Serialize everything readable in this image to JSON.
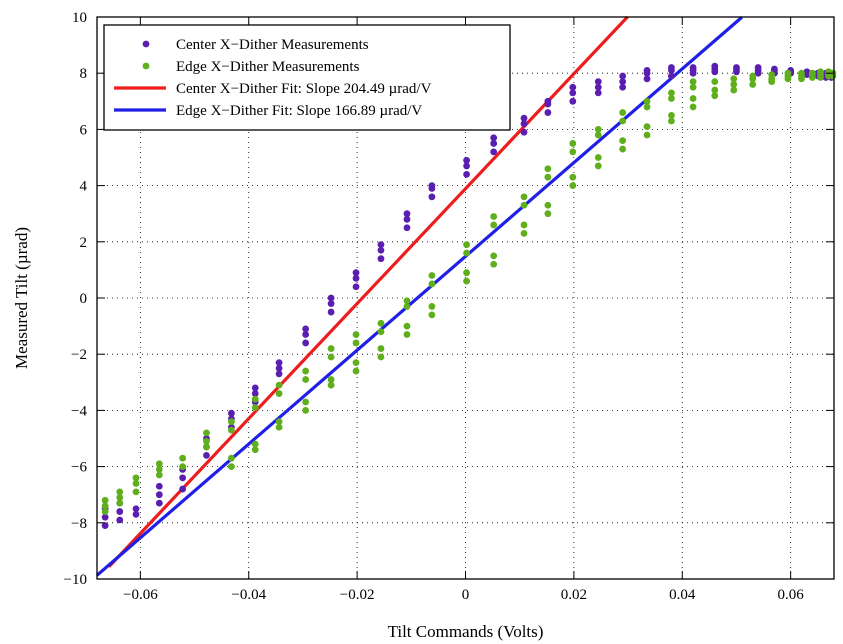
{
  "chart_data": {
    "type": "scatter",
    "xlabel": "Tilt Commands (Volts)",
    "ylabel": "Measured Tilt (µrad)",
    "xlim": [
      -0.068,
      0.068
    ],
    "ylim": [
      -10,
      10
    ],
    "grid": true,
    "legend_position": "top-left",
    "xticks": [
      -0.06,
      -0.04,
      -0.02,
      0,
      0.02,
      0.04,
      0.06
    ],
    "xtick_labels": [
      "−0.06",
      "−0.04",
      "−0.02",
      "0",
      "0.02",
      "0.04",
      "0.06"
    ],
    "yticks": [
      -10,
      -8,
      -6,
      -4,
      -2,
      0,
      2,
      4,
      6,
      8,
      10
    ],
    "ytick_labels": [
      "−10",
      "−8",
      "−6",
      "−4",
      "−2",
      "0",
      "2",
      "4",
      "6",
      "8",
      "10"
    ],
    "series": [
      {
        "name": "Center X−Dither Measurements",
        "kind": "scatter",
        "color": "#5a1fb0",
        "points": [
          [
            -0.0665,
            -8.1
          ],
          [
            -0.0665,
            -7.8
          ],
          [
            -0.0665,
            -7.5
          ],
          [
            -0.0638,
            -7.9
          ],
          [
            -0.0638,
            -7.6
          ],
          [
            -0.0638,
            -7.3
          ],
          [
            -0.0608,
            -7.7
          ],
          [
            -0.0608,
            -7.5
          ],
          [
            -0.0565,
            -7.3
          ],
          [
            -0.0565,
            -7.0
          ],
          [
            -0.0565,
            -6.7
          ],
          [
            -0.0522,
            -6.8
          ],
          [
            -0.0522,
            -6.4
          ],
          [
            -0.0522,
            -6.1
          ],
          [
            -0.0478,
            -5.6
          ],
          [
            -0.0478,
            -5.3
          ],
          [
            -0.0478,
            -5.0
          ],
          [
            -0.0432,
            -4.6
          ],
          [
            -0.0432,
            -4.3
          ],
          [
            -0.0432,
            -4.1
          ],
          [
            -0.0388,
            -3.7
          ],
          [
            -0.0388,
            -3.4
          ],
          [
            -0.0388,
            -3.2
          ],
          [
            -0.0344,
            -2.7
          ],
          [
            -0.0344,
            -2.5
          ],
          [
            -0.0344,
            -2.3
          ],
          [
            -0.0295,
            -1.6
          ],
          [
            -0.0295,
            -1.3
          ],
          [
            -0.0295,
            -1.1
          ],
          [
            -0.0248,
            -0.5
          ],
          [
            -0.0248,
            -0.2
          ],
          [
            -0.0248,
            0.0
          ],
          [
            -0.0202,
            0.4
          ],
          [
            -0.0202,
            0.7
          ],
          [
            -0.0202,
            0.9
          ],
          [
            -0.0156,
            1.4
          ],
          [
            -0.0156,
            1.7
          ],
          [
            -0.0156,
            1.9
          ],
          [
            -0.0108,
            2.5
          ],
          [
            -0.0108,
            2.8
          ],
          [
            -0.0108,
            3.0
          ],
          [
            -0.0062,
            3.6
          ],
          [
            -0.0062,
            3.9
          ],
          [
            -0.0062,
            4.0
          ],
          [
            0.0002,
            4.4
          ],
          [
            0.0002,
            4.7
          ],
          [
            0.0002,
            4.9
          ],
          [
            0.0052,
            5.2
          ],
          [
            0.0052,
            5.5
          ],
          [
            0.0052,
            5.7
          ],
          [
            0.0108,
            5.9
          ],
          [
            0.0108,
            6.2
          ],
          [
            0.0108,
            6.4
          ],
          [
            0.0152,
            6.6
          ],
          [
            0.0152,
            6.9
          ],
          [
            0.0152,
            7.0
          ],
          [
            0.0198,
            7.0
          ],
          [
            0.0198,
            7.3
          ],
          [
            0.0198,
            7.5
          ],
          [
            0.0245,
            7.3
          ],
          [
            0.0245,
            7.5
          ],
          [
            0.0245,
            7.7
          ],
          [
            0.029,
            7.5
          ],
          [
            0.029,
            7.7
          ],
          [
            0.029,
            7.9
          ],
          [
            0.0335,
            7.8
          ],
          [
            0.0335,
            8.0
          ],
          [
            0.0335,
            8.1
          ],
          [
            0.038,
            7.9
          ],
          [
            0.038,
            8.1
          ],
          [
            0.038,
            8.2
          ],
          [
            0.042,
            8.0
          ],
          [
            0.042,
            8.1
          ],
          [
            0.042,
            8.2
          ],
          [
            0.046,
            8.05
          ],
          [
            0.046,
            8.15
          ],
          [
            0.046,
            8.25
          ],
          [
            0.05,
            8.05
          ],
          [
            0.05,
            8.15
          ],
          [
            0.05,
            8.2
          ],
          [
            0.054,
            8.0
          ],
          [
            0.054,
            8.1
          ],
          [
            0.054,
            8.2
          ],
          [
            0.057,
            8.0
          ],
          [
            0.057,
            8.1
          ],
          [
            0.057,
            8.15
          ],
          [
            0.06,
            8.0
          ],
          [
            0.06,
            8.05
          ],
          [
            0.06,
            8.1
          ],
          [
            0.063,
            7.95
          ],
          [
            0.063,
            8.0
          ],
          [
            0.063,
            8.05
          ],
          [
            0.065,
            7.9
          ],
          [
            0.065,
            7.95
          ],
          [
            0.065,
            8.0
          ],
          [
            0.0665,
            7.85
          ],
          [
            0.0665,
            7.95
          ],
          [
            0.0665,
            8.0
          ],
          [
            0.0675,
            7.85
          ],
          [
            0.0675,
            7.95
          ],
          [
            0.0675,
            8.0
          ]
        ]
      },
      {
        "name": "Edge X−Dither Measurements",
        "kind": "scatter",
        "color": "#5fae1c",
        "points": [
          [
            -0.0665,
            -7.6
          ],
          [
            -0.0665,
            -7.4
          ],
          [
            -0.0665,
            -7.2
          ],
          [
            -0.0638,
            -7.3
          ],
          [
            -0.0638,
            -7.1
          ],
          [
            -0.0638,
            -6.9
          ],
          [
            -0.0608,
            -6.9
          ],
          [
            -0.0608,
            -6.6
          ],
          [
            -0.0608,
            -6.4
          ],
          [
            -0.0565,
            -6.3
          ],
          [
            -0.0565,
            -6.1
          ],
          [
            -0.0565,
            -5.9
          ],
          [
            -0.0522,
            -6.0
          ],
          [
            -0.0522,
            -5.7
          ],
          [
            -0.0478,
            -5.3
          ],
          [
            -0.0478,
            -5.1
          ],
          [
            -0.0478,
            -4.8
          ],
          [
            -0.0432,
            -6.0
          ],
          [
            -0.0432,
            -5.7
          ],
          [
            -0.0432,
            -4.7
          ],
          [
            -0.0432,
            -4.4
          ],
          [
            -0.0388,
            -5.4
          ],
          [
            -0.0388,
            -5.2
          ],
          [
            -0.0388,
            -3.9
          ],
          [
            -0.0388,
            -3.6
          ],
          [
            -0.0344,
            -4.6
          ],
          [
            -0.0344,
            -4.4
          ],
          [
            -0.0344,
            -3.4
          ],
          [
            -0.0344,
            -3.1
          ],
          [
            -0.0295,
            -4.0
          ],
          [
            -0.0295,
            -3.7
          ],
          [
            -0.0295,
            -2.9
          ],
          [
            -0.0295,
            -2.6
          ],
          [
            -0.0248,
            -3.1
          ],
          [
            -0.0248,
            -2.9
          ],
          [
            -0.0248,
            -2.1
          ],
          [
            -0.0248,
            -1.8
          ],
          [
            -0.0202,
            -2.6
          ],
          [
            -0.0202,
            -2.3
          ],
          [
            -0.0202,
            -1.6
          ],
          [
            -0.0202,
            -1.3
          ],
          [
            -0.0156,
            -2.1
          ],
          [
            -0.0156,
            -1.8
          ],
          [
            -0.0156,
            -1.2
          ],
          [
            -0.0156,
            -0.9
          ],
          [
            -0.0108,
            -1.3
          ],
          [
            -0.0108,
            -1.0
          ],
          [
            -0.0108,
            -0.3
          ],
          [
            -0.0108,
            -0.1
          ],
          [
            -0.0062,
            -0.6
          ],
          [
            -0.0062,
            -0.3
          ],
          [
            -0.0062,
            0.5
          ],
          [
            -0.0062,
            0.8
          ],
          [
            0.0002,
            0.6
          ],
          [
            0.0002,
            0.9
          ],
          [
            0.0002,
            1.6
          ],
          [
            0.0002,
            1.9
          ],
          [
            0.0052,
            1.2
          ],
          [
            0.0052,
            1.5
          ],
          [
            0.0052,
            2.6
          ],
          [
            0.0052,
            2.9
          ],
          [
            0.0108,
            2.3
          ],
          [
            0.0108,
            2.6
          ],
          [
            0.0108,
            3.3
          ],
          [
            0.0108,
            3.6
          ],
          [
            0.0152,
            3.0
          ],
          [
            0.0152,
            3.3
          ],
          [
            0.0152,
            4.3
          ],
          [
            0.0152,
            4.6
          ],
          [
            0.0198,
            4.0
          ],
          [
            0.0198,
            4.3
          ],
          [
            0.0198,
            5.2
          ],
          [
            0.0198,
            5.5
          ],
          [
            0.0245,
            4.7
          ],
          [
            0.0245,
            5.0
          ],
          [
            0.0245,
            5.8
          ],
          [
            0.0245,
            6.0
          ],
          [
            0.029,
            5.3
          ],
          [
            0.029,
            5.6
          ],
          [
            0.029,
            6.3
          ],
          [
            0.029,
            6.6
          ],
          [
            0.0335,
            5.8
          ],
          [
            0.0335,
            6.1
          ],
          [
            0.0335,
            6.8
          ],
          [
            0.0335,
            7.0
          ],
          [
            0.038,
            6.3
          ],
          [
            0.038,
            6.5
          ],
          [
            0.038,
            7.1
          ],
          [
            0.038,
            7.3
          ],
          [
            0.042,
            6.8
          ],
          [
            0.042,
            7.1
          ],
          [
            0.042,
            7.5
          ],
          [
            0.042,
            7.7
          ],
          [
            0.046,
            7.2
          ],
          [
            0.046,
            7.4
          ],
          [
            0.046,
            7.7
          ],
          [
            0.0495,
            7.4
          ],
          [
            0.0495,
            7.6
          ],
          [
            0.0495,
            7.8
          ],
          [
            0.053,
            7.6
          ],
          [
            0.053,
            7.8
          ],
          [
            0.053,
            7.9
          ],
          [
            0.0565,
            7.7
          ],
          [
            0.0565,
            7.8
          ],
          [
            0.0565,
            7.95
          ],
          [
            0.0595,
            7.8
          ],
          [
            0.0595,
            7.9
          ],
          [
            0.0595,
            8.0
          ],
          [
            0.062,
            7.8
          ],
          [
            0.062,
            7.9
          ],
          [
            0.062,
            8.0
          ],
          [
            0.064,
            7.85
          ],
          [
            0.064,
            7.95
          ],
          [
            0.064,
            8.0
          ],
          [
            0.0655,
            7.85
          ],
          [
            0.0655,
            7.95
          ],
          [
            0.0655,
            8.05
          ],
          [
            0.067,
            7.9
          ],
          [
            0.067,
            8.0
          ],
          [
            0.067,
            8.05
          ],
          [
            0.0678,
            7.9
          ],
          [
            0.0678,
            8.0
          ]
        ]
      },
      {
        "name": "Center X−Dither Fit: Slope 204.49 µrad/V",
        "kind": "line",
        "color": "#ee1c1c",
        "slope": 204.49,
        "intercept": 3.89,
        "x": [
          -0.0658,
          0.0299
        ]
      },
      {
        "name": "Edge X−Dither Fit: Slope 166.89 µrad/V",
        "kind": "line",
        "color": "#1f1fe6",
        "slope": 166.89,
        "intercept": 1.48,
        "x": [
          -0.068,
          0.051
        ]
      }
    ]
  }
}
